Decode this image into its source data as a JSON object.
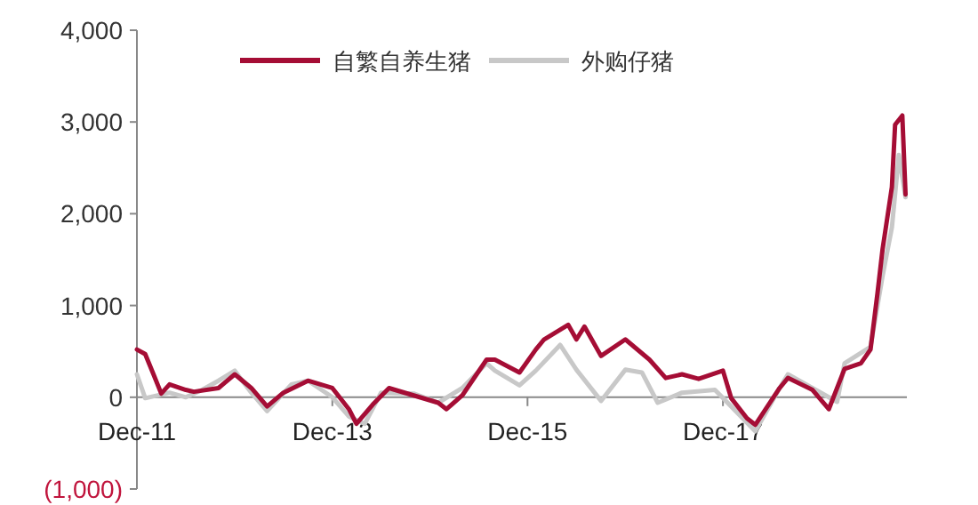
{
  "chart_data": {
    "type": "line",
    "legend": "top",
    "grid": false,
    "xlim": [
      "2011-12",
      "2019-10-20"
    ],
    "xticks": [
      {
        "value": "2011-12",
        "label": "Dec-11"
      },
      {
        "value": "2013-12",
        "label": "Dec-13"
      },
      {
        "value": "2015-12",
        "label": "Dec-15"
      },
      {
        "value": "2017-12",
        "label": "Dec-17"
      }
    ],
    "ylim": [
      -1000,
      4000
    ],
    "yticks": [
      {
        "value": -1000,
        "label": "(1,000)"
      },
      {
        "value": 0,
        "label": "0"
      },
      {
        "value": 1000,
        "label": "1,000"
      },
      {
        "value": 2000,
        "label": "2,000"
      },
      {
        "value": 3000,
        "label": "3,000"
      },
      {
        "value": 4000,
        "label": "4,000"
      }
    ],
    "series": [
      {
        "name": "自繁自养生猪",
        "color": "#a50d35",
        "x": [
          "2011-12",
          "2012-01",
          "2012-02",
          "2012-03",
          "2012-04",
          "2012-06",
          "2012-07",
          "2012-10",
          "2012-12",
          "2013-02",
          "2013-04",
          "2013-06",
          "2013-09",
          "2013-12",
          "2014-02",
          "2014-03",
          "2014-05",
          "2014-07",
          "2014-10",
          "2015-01",
          "2015-02",
          "2015-04",
          "2015-07",
          "2015-08",
          "2015-11",
          "2016-01",
          "2016-02",
          "2016-05",
          "2016-06",
          "2016-07",
          "2016-09",
          "2016-12",
          "2017-03",
          "2017-05",
          "2017-07",
          "2017-09",
          "2017-12",
          "2018-01",
          "2018-03",
          "2018-04",
          "2018-07",
          "2018-08",
          "2018-11",
          "2019-01",
          "2019-03",
          "2019-05",
          "2019-06-06",
          "2019-07-02",
          "2019-07-21",
          "2019-08-25",
          "2019-09-06",
          "2019-10-03",
          "2019-10-15"
        ],
        "values": [
          520,
          470,
          250,
          40,
          140,
          80,
          60,
          100,
          250,
          100,
          -100,
          50,
          180,
          100,
          -130,
          -290,
          -80,
          100,
          20,
          -60,
          -130,
          20,
          410,
          410,
          270,
          520,
          630,
          790,
          630,
          770,
          450,
          630,
          410,
          210,
          250,
          200,
          290,
          -10,
          -230,
          -300,
          100,
          210,
          80,
          -130,
          310,
          370,
          520,
          1130,
          1610,
          2290,
          2970,
          3070,
          2210
        ]
      },
      {
        "name": "外购仔猪",
        "color": "#c8c8c8",
        "x": [
          "2011-12",
          "2012-01",
          "2012-04",
          "2012-06",
          "2012-08",
          "2012-10",
          "2012-12",
          "2013-02",
          "2013-04",
          "2013-07",
          "2013-09",
          "2013-12",
          "2014-02",
          "2014-04",
          "2014-06",
          "2014-10",
          "2015-01",
          "2015-04",
          "2015-07",
          "2015-08",
          "2015-11",
          "2016-01",
          "2016-04",
          "2016-06",
          "2016-09",
          "2016-12",
          "2017-02",
          "2017-04",
          "2017-07",
          "2017-11",
          "2018-01",
          "2018-04",
          "2018-07",
          "2018-08",
          "2018-11",
          "2019-02",
          "2019-03",
          "2019-06-06",
          "2019-07-21",
          "2019-08-25",
          "2019-09-20",
          "2019-10-15"
        ],
        "values": [
          250,
          -10,
          50,
          0,
          80,
          180,
          290,
          50,
          -150,
          140,
          180,
          0,
          -210,
          -290,
          50,
          40,
          -60,
          100,
          370,
          290,
          130,
          290,
          570,
          300,
          -40,
          300,
          270,
          -60,
          50,
          80,
          -100,
          -370,
          100,
          250,
          100,
          -50,
          370,
          550,
          1320,
          1850,
          2640,
          2180
        ]
      }
    ]
  }
}
